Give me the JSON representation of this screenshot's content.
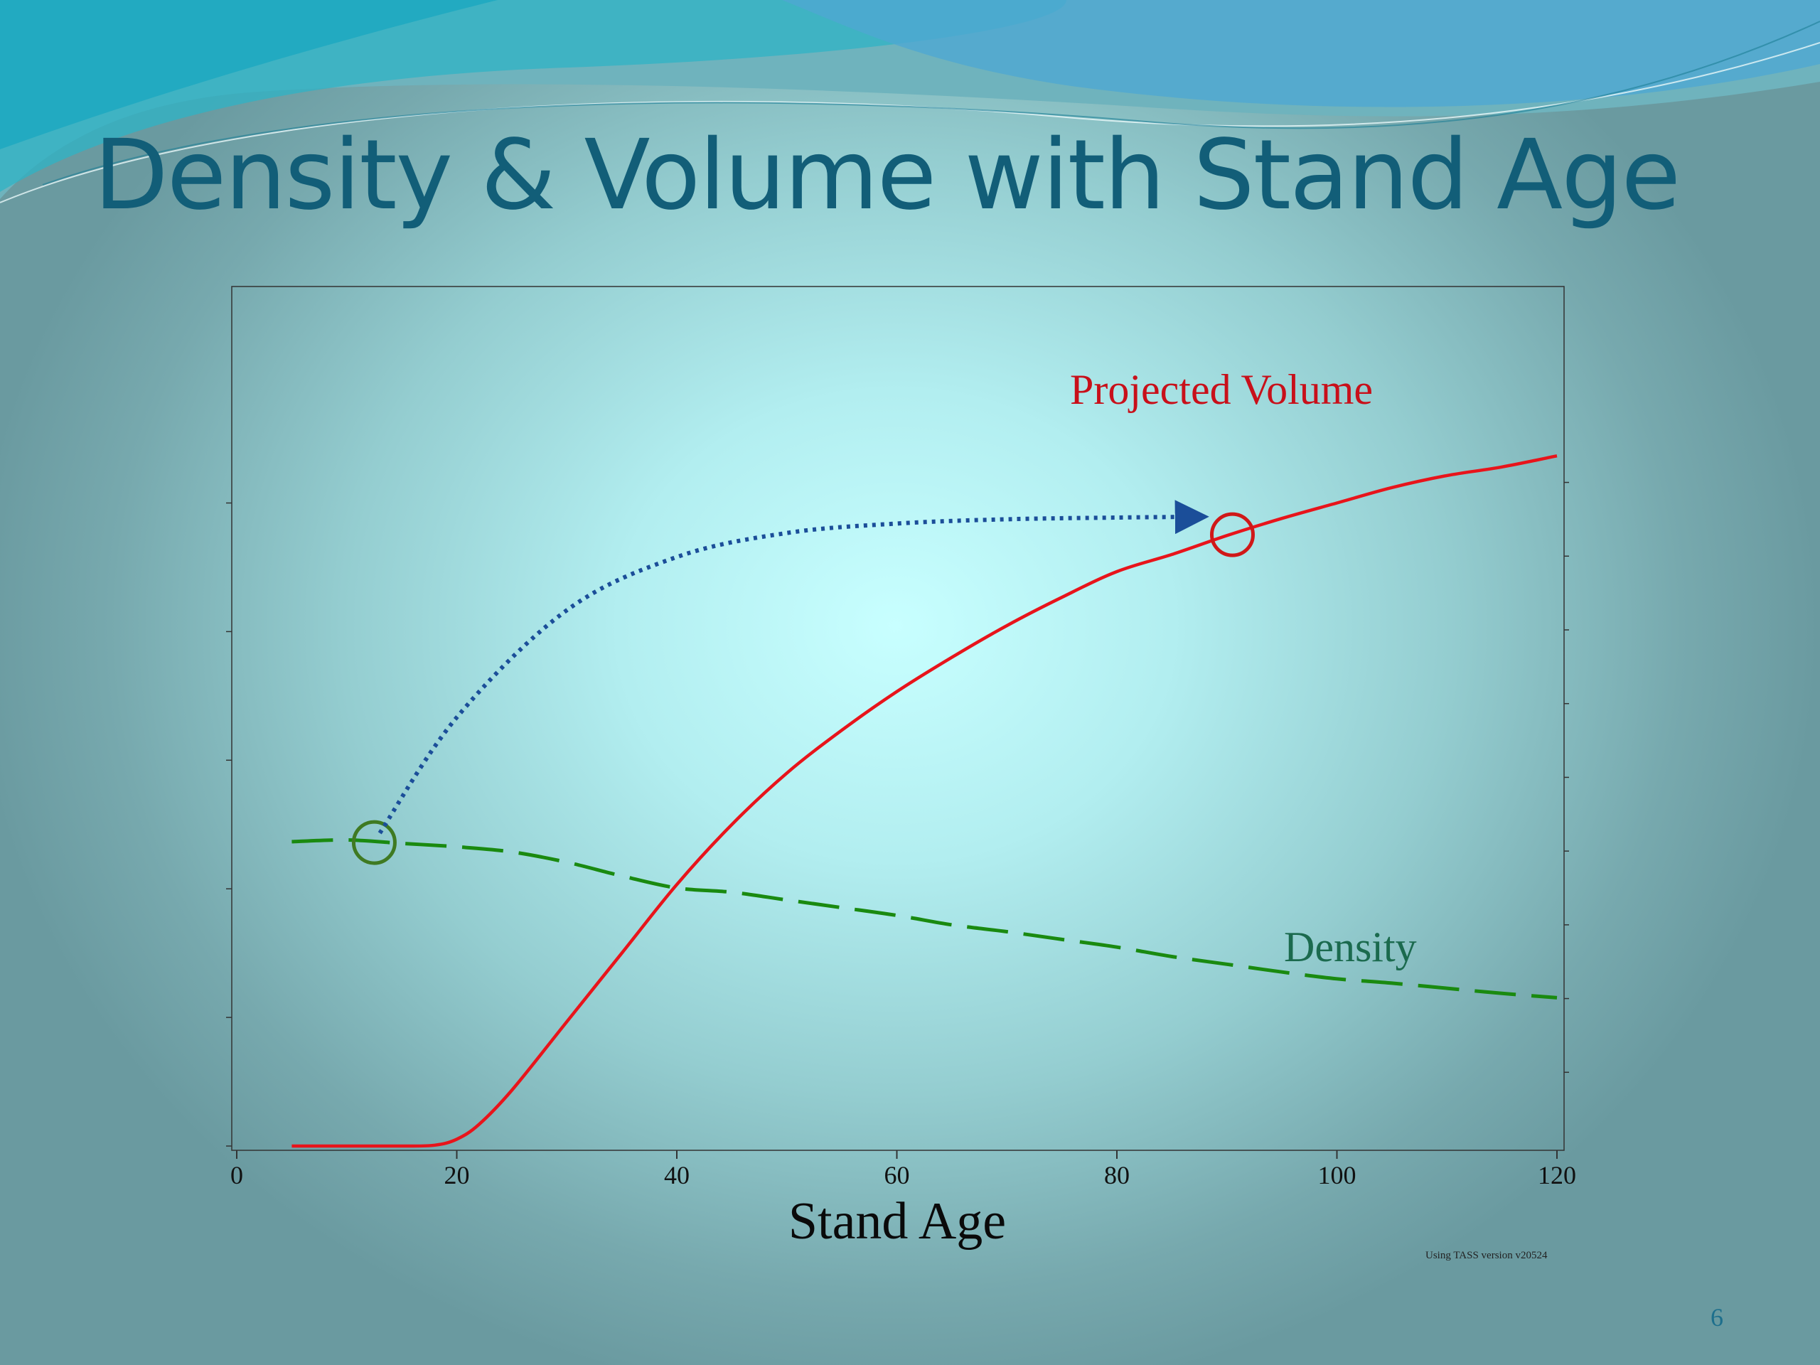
{
  "slide": {
    "title": "Density & Volume with Stand Age",
    "page_number": "6",
    "colors": {
      "title": "#125e78",
      "background_center": "#c8ffff",
      "background_edge": "#6a9aa0"
    }
  },
  "chart_data": {
    "type": "line",
    "title": "",
    "xlabel": "Stand Age",
    "ylabel": "",
    "xlim": [
      0,
      120
    ],
    "x_ticks": [
      "0",
      "20",
      "40",
      "60",
      "80",
      "100",
      "120"
    ],
    "y_tick_labels_shown": false,
    "grid": false,
    "note": "Using TASS version v20524",
    "series": [
      {
        "name": "Projected Volume",
        "color": "#e8141b",
        "style": "solid",
        "x": [
          5,
          10,
          15,
          18,
          20,
          22,
          25,
          30,
          35,
          40,
          45,
          50,
          55,
          60,
          65,
          70,
          75,
          80,
          85,
          90,
          95,
          100,
          105,
          110,
          115,
          120
        ],
        "y": [
          0,
          0,
          0,
          0.1,
          0.8,
          2.5,
          6.5,
          14.5,
          22.5,
          30.5,
          37.5,
          43.5,
          48.5,
          53,
          57,
          60.7,
          64,
          67,
          69,
          71.2,
          73.2,
          75,
          76.8,
          78.2,
          79.2,
          80.5
        ]
      },
      {
        "name": "Density",
        "color": "#1a8a10",
        "style": "dashed",
        "x": [
          5,
          10,
          15,
          20,
          25,
          30,
          35,
          40,
          45,
          50,
          55,
          60,
          65,
          70,
          75,
          80,
          85,
          90,
          95,
          100,
          105,
          110,
          115,
          120
        ],
        "y": [
          35.5,
          35.7,
          35.3,
          34.9,
          34.3,
          33.1,
          31.5,
          30.1,
          29.6,
          28.7,
          27.8,
          26.9,
          25.8,
          25,
          24.1,
          23.2,
          22.1,
          21.2,
          20.3,
          19.5,
          19,
          18.4,
          17.8,
          17.3
        ]
      }
    ],
    "annotations": [
      {
        "type": "circle",
        "at": [
          12.5,
          35.4
        ],
        "color": "#3f7a22"
      },
      {
        "type": "circle",
        "at": [
          90.5,
          71.3
        ],
        "color": "#d01818"
      },
      {
        "type": "dotted-arrow",
        "color": "#1b4e99",
        "path": [
          [
            13,
            36.5
          ],
          [
            20,
            50
          ],
          [
            30,
            62.5
          ],
          [
            40,
            68.7
          ],
          [
            50,
            71.5
          ],
          [
            60,
            72.6
          ],
          [
            70,
            73.1
          ],
          [
            80,
            73.3
          ],
          [
            88,
            73.4
          ]
        ]
      }
    ]
  }
}
